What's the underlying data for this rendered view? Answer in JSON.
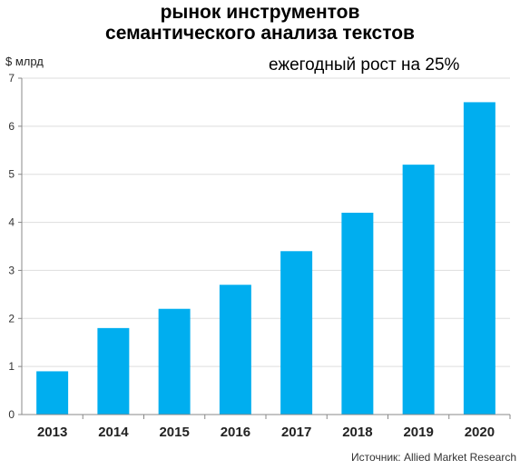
{
  "title_line1": "рынок инструментов",
  "title_line2": "семантического анализа текстов",
  "annotation": "ежегодный рост на 25%",
  "source": "Источник: Allied Market Research",
  "colors": {
    "bar": "#00AEEF",
    "axis": "#888888",
    "grid": "#DDDDDD"
  },
  "chart_data": {
    "type": "bar",
    "categories": [
      "2013",
      "2014",
      "2015",
      "2016",
      "2017",
      "2018",
      "2019",
      "2020"
    ],
    "values": [
      0.9,
      1.8,
      2.2,
      2.7,
      3.4,
      4.2,
      5.2,
      6.5
    ],
    "title": "рынок инструментов семантического анализа текстов",
    "xlabel": "",
    "ylabel": "$ млрд",
    "ylim": [
      0,
      7
    ],
    "yticks": [
      0,
      1,
      2,
      3,
      4,
      5,
      6,
      7
    ],
    "grid": true
  }
}
